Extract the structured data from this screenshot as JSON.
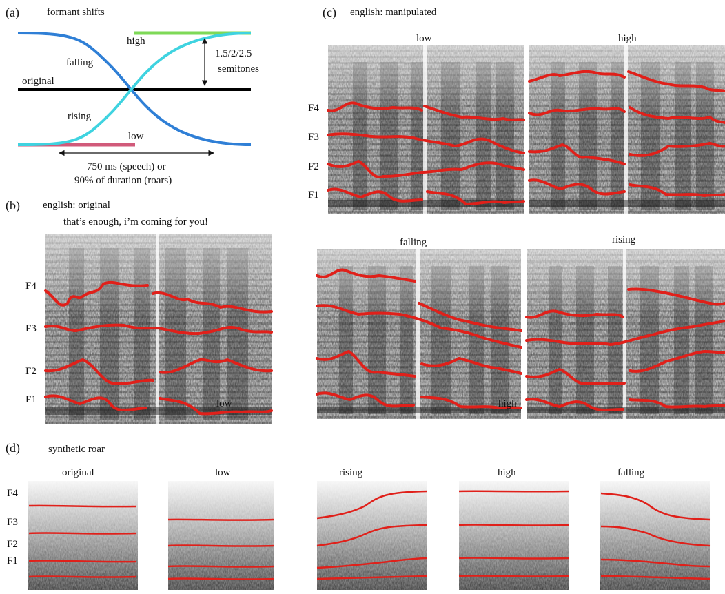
{
  "panels": {
    "a": {
      "letter": "(a)",
      "title": "formant shifts",
      "labels": {
        "high": "high",
        "falling": "falling",
        "original": "original",
        "rising": "rising",
        "low": "low",
        "semitones_line1": "1.5/2/2.5",
        "semitones_line2": "semitones",
        "duration_line1": "750 ms (speech) or",
        "duration_line2": "90% of duration (roars)"
      },
      "colors": {
        "high": "#7ed957",
        "low": "#d15a7a",
        "falling": "#2f7fd6",
        "rising": "#3fd3e0",
        "original": "#000000"
      }
    },
    "b": {
      "letter": "(b)",
      "title": "english: original",
      "sentence": "that’s enough, i’m coming for you!",
      "overlay_text": "low",
      "formants": [
        "F4",
        "F3",
        "F2",
        "F1"
      ]
    },
    "c": {
      "letter": "(c)",
      "title": "english: manipulated",
      "formants": [
        "F4",
        "F3",
        "F2",
        "F1"
      ],
      "subpanels": {
        "low": "low",
        "high": "high",
        "falling": "falling",
        "rising": "rising"
      },
      "overlay_text": "high"
    },
    "d": {
      "letter": "(d)",
      "title": "synthetic roar",
      "formants": [
        "F4",
        "F3",
        "F2",
        "F1"
      ],
      "conditions": [
        "original",
        "low",
        "rising",
        "high",
        "falling"
      ]
    }
  },
  "colors": {
    "formant_track": "#e0201a"
  }
}
